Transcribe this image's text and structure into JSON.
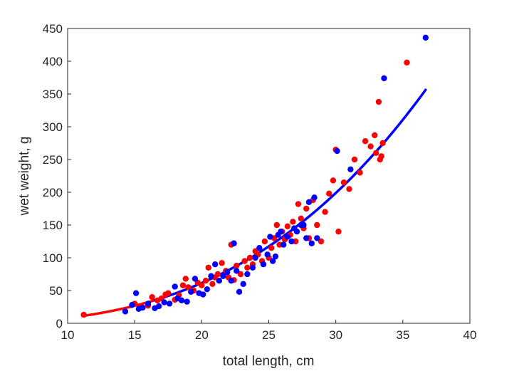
{
  "chart_data": {
    "type": "scatter",
    "title": "",
    "xlabel": "total length, cm",
    "ylabel": "wet weight, g",
    "xlim": [
      10,
      40
    ],
    "ylim": [
      0,
      450
    ],
    "xticks": [
      "10",
      "15",
      "20",
      "25",
      "30",
      "35",
      "40"
    ],
    "yticks": [
      "0",
      "50",
      "100",
      "150",
      "200",
      "250",
      "300",
      "350",
      "400",
      "450"
    ],
    "series": [
      {
        "name": "red-samples",
        "color": "#ff0000",
        "points": [
          [
            11.2,
            13
          ],
          [
            15.0,
            30
          ],
          [
            15.5,
            25
          ],
          [
            16.0,
            27
          ],
          [
            16.3,
            40
          ],
          [
            16.7,
            35
          ],
          [
            17.0,
            38
          ],
          [
            17.3,
            44
          ],
          [
            17.5,
            46
          ],
          [
            18.0,
            36
          ],
          [
            18.3,
            43
          ],
          [
            18.6,
            58
          ],
          [
            18.8,
            68
          ],
          [
            19.0,
            55
          ],
          [
            19.4,
            50
          ],
          [
            19.7,
            62
          ],
          [
            20.0,
            58
          ],
          [
            20.3,
            65
          ],
          [
            20.5,
            85
          ],
          [
            20.8,
            60
          ],
          [
            21.0,
            70
          ],
          [
            21.2,
            75
          ],
          [
            21.5,
            92
          ],
          [
            21.8,
            80
          ],
          [
            22.0,
            70
          ],
          [
            22.2,
            120
          ],
          [
            22.4,
            66
          ],
          [
            22.6,
            88
          ],
          [
            22.9,
            75
          ],
          [
            23.2,
            95
          ],
          [
            23.4,
            85
          ],
          [
            23.6,
            100
          ],
          [
            23.8,
            90
          ],
          [
            24.0,
            110
          ],
          [
            24.2,
            105
          ],
          [
            24.5,
            95
          ],
          [
            24.7,
            125
          ],
          [
            25.0,
            100
          ],
          [
            25.2,
            115
          ],
          [
            25.4,
            130
          ],
          [
            25.6,
            150
          ],
          [
            25.8,
            120
          ],
          [
            26.0,
            140
          ],
          [
            26.2,
            128
          ],
          [
            26.4,
            148
          ],
          [
            26.6,
            135
          ],
          [
            26.8,
            155
          ],
          [
            27.0,
            125
          ],
          [
            27.2,
            182
          ],
          [
            27.4,
            160
          ],
          [
            27.6,
            145
          ],
          [
            27.8,
            175
          ],
          [
            28.0,
            130
          ],
          [
            28.3,
            188
          ],
          [
            28.6,
            150
          ],
          [
            28.9,
            125
          ],
          [
            29.2,
            170
          ],
          [
            29.5,
            198
          ],
          [
            29.8,
            218
          ],
          [
            30.0,
            265
          ],
          [
            30.2,
            140
          ],
          [
            30.6,
            215
          ],
          [
            31.0,
            205
          ],
          [
            31.4,
            250
          ],
          [
            31.8,
            230
          ],
          [
            32.2,
            278
          ],
          [
            32.6,
            270
          ],
          [
            32.9,
            287
          ],
          [
            33.0,
            260
          ],
          [
            33.2,
            338
          ],
          [
            33.4,
            255
          ],
          [
            33.5,
            275
          ],
          [
            33.3,
            250
          ],
          [
            35.3,
            398
          ]
        ]
      },
      {
        "name": "blue-samples",
        "color": "#0000ff",
        "points": [
          [
            14.3,
            18
          ],
          [
            14.8,
            28
          ],
          [
            15.1,
            46
          ],
          [
            15.3,
            22
          ],
          [
            15.6,
            24
          ],
          [
            16.0,
            30
          ],
          [
            16.5,
            23
          ],
          [
            16.8,
            26
          ],
          [
            17.2,
            32
          ],
          [
            17.6,
            30
          ],
          [
            18.0,
            56
          ],
          [
            18.2,
            38
          ],
          [
            18.5,
            35
          ],
          [
            18.9,
            33
          ],
          [
            19.2,
            48
          ],
          [
            19.5,
            68
          ],
          [
            19.8,
            46
          ],
          [
            20.1,
            44
          ],
          [
            20.4,
            52
          ],
          [
            20.7,
            72
          ],
          [
            21.0,
            90
          ],
          [
            21.3,
            65
          ],
          [
            21.6,
            72
          ],
          [
            21.9,
            78
          ],
          [
            22.2,
            65
          ],
          [
            22.4,
            122
          ],
          [
            22.6,
            80
          ],
          [
            22.8,
            48
          ],
          [
            23.1,
            60
          ],
          [
            23.4,
            75
          ],
          [
            23.8,
            85
          ],
          [
            24.0,
            100
          ],
          [
            24.3,
            115
          ],
          [
            24.6,
            90
          ],
          [
            24.9,
            105
          ],
          [
            25.1,
            132
          ],
          [
            25.3,
            95
          ],
          [
            25.5,
            102
          ],
          [
            25.7,
            135
          ],
          [
            25.9,
            140
          ],
          [
            26.1,
            120
          ],
          [
            26.4,
            132
          ],
          [
            26.7,
            125
          ],
          [
            26.9,
            145
          ],
          [
            27.1,
            140
          ],
          [
            27.4,
            150
          ],
          [
            27.6,
            150
          ],
          [
            27.8,
            130
          ],
          [
            28.0,
            185
          ],
          [
            28.2,
            122
          ],
          [
            28.4,
            192
          ],
          [
            28.6,
            130
          ],
          [
            30.1,
            263
          ],
          [
            31.1,
            235
          ],
          [
            33.6,
            374
          ],
          [
            36.7,
            436
          ]
        ]
      }
    ],
    "fit_curves": [
      {
        "name": "red-fit",
        "color": "#ff0000",
        "a": 0.0106,
        "b": 2.893,
        "x_range": [
          11.2,
          16.5
        ]
      },
      {
        "name": "blue-fit",
        "color": "#0000ff",
        "a": 0.0106,
        "b": 2.893,
        "x_range": [
          16.5,
          36.7
        ]
      }
    ]
  }
}
